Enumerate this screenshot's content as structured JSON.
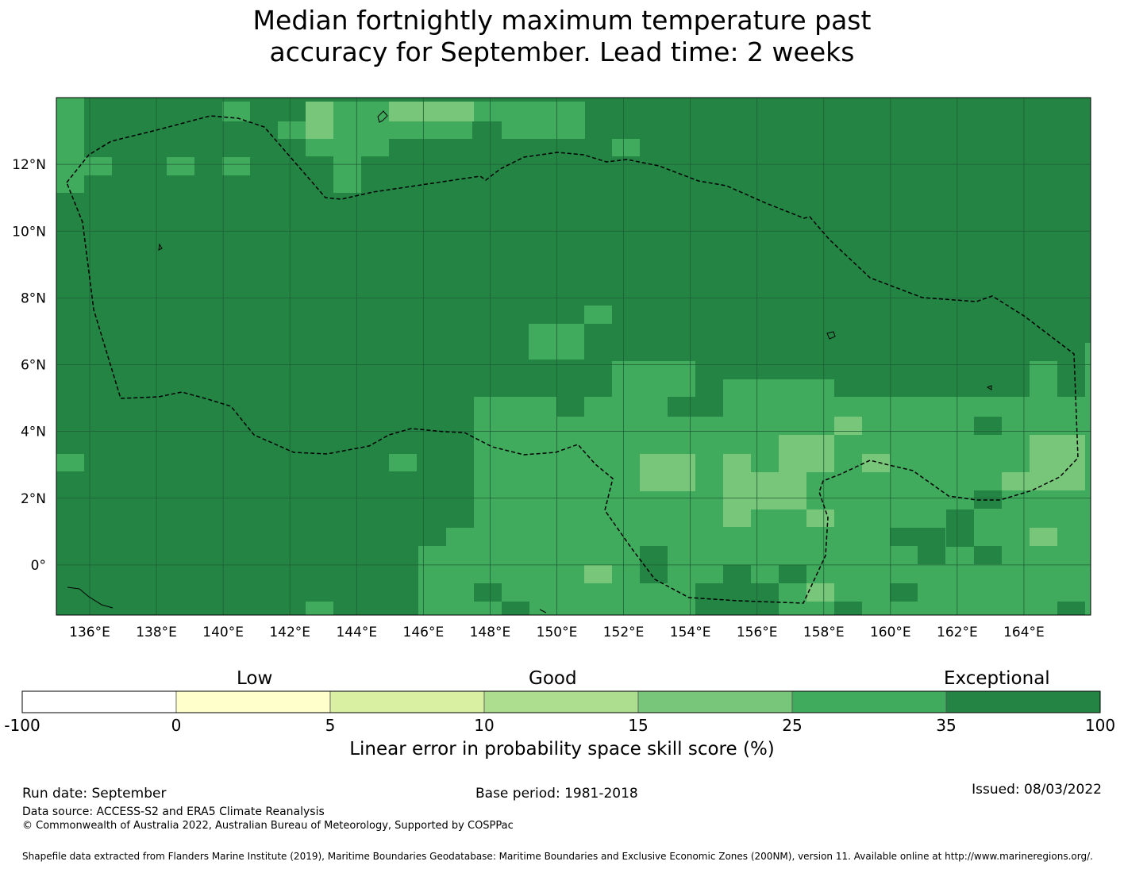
{
  "title_line1": "Median fortnightly maximum temperature past",
  "title_line2": "accuracy for September. Lead time: 2 weeks",
  "map": {
    "lon_range": [
      135,
      166
    ],
    "lat_range": [
      -1.5,
      14
    ],
    "lon_ticks": [
      "136°E",
      "138°E",
      "140°E",
      "142°E",
      "144°E",
      "146°E",
      "148°E",
      "150°E",
      "152°E",
      "154°E",
      "156°E",
      "158°E",
      "160°E",
      "162°E",
      "164°E"
    ],
    "lat_ticks": [
      "12°N",
      "10°N",
      "8°N",
      "6°N",
      "4°N",
      "2°N",
      "0°"
    ],
    "colors": {
      "exceptional_dark": "#238443",
      "good_mid": "#41ab5d",
      "good_light": "#78c679",
      "eez_line": "#000000",
      "grid": "#1f5e36"
    }
  },
  "colorbar": {
    "categories": {
      "low": "Low",
      "good": "Good",
      "exceptional": "Exceptional"
    },
    "ticks": [
      "-100",
      "0",
      "5",
      "10",
      "15",
      "25",
      "35",
      "100"
    ],
    "bin_colors": [
      "#ffffff",
      "#ffffcc",
      "#d9f0a3",
      "#addd8e",
      "#78c679",
      "#41ab5d",
      "#238443"
    ],
    "label": "Linear error in probability space skill score (%)"
  },
  "footer": {
    "run_date": "Run date: September",
    "base_period": "Base period: 1981-2018",
    "issued": "Issued: 08/03/2022",
    "data_source": "Data source: ACCESS-S2 and ERA5 Climate Reanalysis",
    "copyright": "© Commonwealth of Australia 2022, Australian Bureau of Meteorology, Supported by COSPPac",
    "shapefile": "Shapefile data extracted from Flanders Marine Institute (2019), Maritime Boundaries Geodatabase: Maritime Boundaries and Exclusive Economic Zones (200NM), version 11. Available online at http://www.marineregions.org/."
  }
}
